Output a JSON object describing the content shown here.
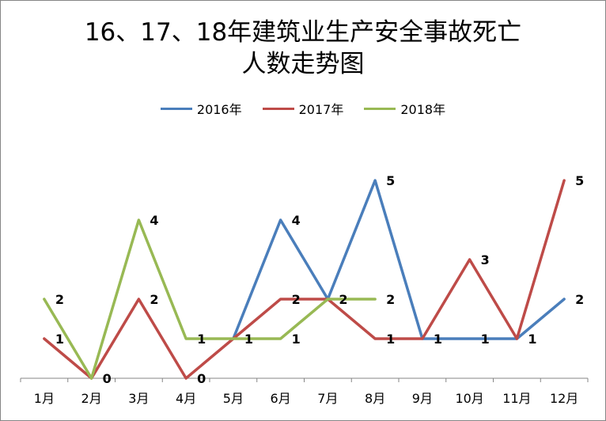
{
  "chart_data": {
    "type": "line",
    "title_lines": [
      "16、17、18年建筑业生产安全事故死亡",
      "人数走势图"
    ],
    "categories": [
      "1月",
      "2月",
      "3月",
      "4月",
      "5月",
      "6月",
      "7月",
      "8月",
      "9月",
      "10月",
      "11月",
      "12月"
    ],
    "ylim": [
      0,
      5
    ],
    "grid": false,
    "legend_position": "top-center",
    "series": [
      {
        "name": "2016年",
        "color": "#4a7ebb",
        "values": [
          null,
          null,
          null,
          null,
          1,
          4,
          2,
          5,
          1,
          1,
          1,
          2
        ],
        "labels": [
          null,
          null,
          null,
          null,
          null,
          "4",
          null,
          "5",
          "1",
          "1",
          "1",
          "2"
        ]
      },
      {
        "name": "2017年",
        "color": "#be4b48",
        "values": [
          1,
          0,
          2,
          0,
          1,
          2,
          2,
          1,
          1,
          3,
          1,
          5
        ],
        "labels": [
          "1",
          "0",
          "2",
          "0",
          "1",
          "2",
          null,
          "1",
          null,
          "3",
          null,
          "5"
        ]
      },
      {
        "name": "2018年",
        "color": "#98b954",
        "values": [
          2,
          0,
          4,
          1,
          1,
          1,
          2,
          2,
          null,
          null,
          null,
          null
        ],
        "labels": [
          "2",
          null,
          "4",
          "1",
          null,
          "1",
          "2",
          "2",
          null,
          null,
          null,
          null
        ]
      }
    ]
  }
}
